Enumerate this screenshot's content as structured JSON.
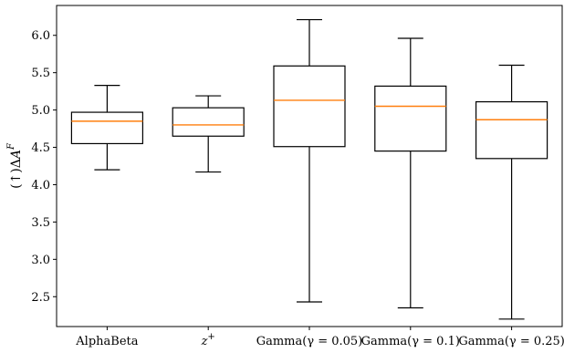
{
  "chart_data": {
    "type": "box",
    "ylabel": "(↑)ΔA^F",
    "ylabel_parts": {
      "prefix": "(↑)Δ",
      "var": "A",
      "sup": "F"
    },
    "ylim": [
      2.1,
      6.4
    ],
    "yticks": [
      2.5,
      3.0,
      3.5,
      4.0,
      4.5,
      5.0,
      5.5,
      6.0
    ],
    "ytick_labels": [
      "2.5",
      "3.0",
      "3.5",
      "4.0",
      "4.5",
      "5.0",
      "5.5",
      "6.0"
    ],
    "grid": false,
    "median_color": "#ff7f0e",
    "box_color": "#000000",
    "categories": [
      "AlphaBeta",
      "z+",
      "Gamma(γ = 0.05)",
      "Gamma(γ = 0.1)",
      "Gamma(γ = 0.25)"
    ],
    "category_labels": [
      {
        "text": "AlphaBeta"
      },
      {
        "var": "z",
        "sup": "+"
      },
      {
        "text": "Gamma(γ = 0.05)"
      },
      {
        "text": "Gamma(γ = 0.1)"
      },
      {
        "text": "Gamma(γ = 0.25)"
      }
    ],
    "boxes": [
      {
        "whisker_low": 4.2,
        "q1": 4.55,
        "median": 4.85,
        "q3": 4.97,
        "whisker_high": 5.33
      },
      {
        "whisker_low": 4.17,
        "q1": 4.65,
        "median": 4.8,
        "q3": 5.03,
        "whisker_high": 5.19
      },
      {
        "whisker_low": 2.43,
        "q1": 4.51,
        "median": 5.13,
        "q3": 5.59,
        "whisker_high": 6.21
      },
      {
        "whisker_low": 2.35,
        "q1": 4.45,
        "median": 5.05,
        "q3": 5.32,
        "whisker_high": 5.96
      },
      {
        "whisker_low": 2.2,
        "q1": 4.35,
        "median": 4.87,
        "q3": 5.11,
        "whisker_high": 5.6
      }
    ]
  }
}
